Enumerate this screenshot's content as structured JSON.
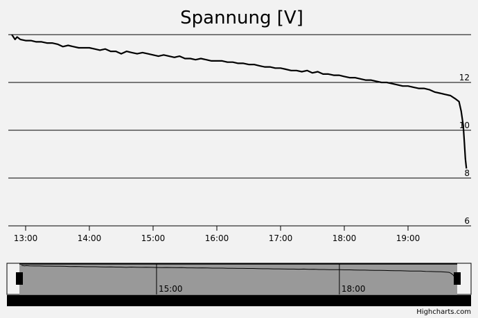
{
  "chart_data": {
    "type": "line",
    "title": "Spannung [V]",
    "xlabel": "",
    "ylabel": "",
    "x_ticks": [
      "13:00",
      "14:00",
      "15:00",
      "16:00",
      "17:00",
      "18:00",
      "19:00"
    ],
    "y_ticks": [
      6,
      8,
      10,
      12
    ],
    "xlim": [
      "12:45",
      "19:56"
    ],
    "ylim": [
      6,
      14
    ],
    "grid": true,
    "series": [
      {
        "x": [
          "12:47",
          "12:50",
          "12:52",
          "12:55",
          "13:00",
          "13:05",
          "13:10",
          "13:15",
          "13:20",
          "13:25",
          "13:30",
          "13:35",
          "13:40",
          "13:45",
          "13:50",
          "13:55",
          "14:00",
          "14:05",
          "14:10",
          "14:15",
          "14:20",
          "14:25",
          "14:30",
          "14:35",
          "14:40",
          "14:45",
          "14:50",
          "14:55",
          "15:00",
          "15:05",
          "15:10",
          "15:15",
          "15:20",
          "15:25",
          "15:30",
          "15:35",
          "15:40",
          "15:45",
          "15:50",
          "15:55",
          "16:00",
          "16:05",
          "16:10",
          "16:15",
          "16:20",
          "16:25",
          "16:30",
          "16:35",
          "16:40",
          "16:45",
          "16:50",
          "16:55",
          "17:00",
          "17:05",
          "17:10",
          "17:15",
          "17:20",
          "17:25",
          "17:30",
          "17:35",
          "17:40",
          "17:45",
          "17:50",
          "17:55",
          "18:00",
          "18:05",
          "18:10",
          "18:15",
          "18:20",
          "18:25",
          "18:30",
          "18:35",
          "18:40",
          "18:45",
          "18:50",
          "18:55",
          "19:00",
          "19:05",
          "19:10",
          "19:15",
          "19:20",
          "19:25",
          "19:30",
          "19:35",
          "19:40",
          "19:45",
          "19:48",
          "19:50",
          "19:52",
          "19:53",
          "19:54",
          "19:55"
        ],
        "y": [
          14.0,
          13.8,
          13.9,
          13.8,
          13.75,
          13.75,
          13.7,
          13.7,
          13.65,
          13.65,
          13.6,
          13.5,
          13.55,
          13.5,
          13.45,
          13.45,
          13.45,
          13.4,
          13.35,
          13.4,
          13.3,
          13.3,
          13.2,
          13.3,
          13.25,
          13.2,
          13.25,
          13.2,
          13.15,
          13.1,
          13.15,
          13.1,
          13.05,
          13.1,
          13.0,
          13.0,
          12.95,
          13.0,
          12.95,
          12.9,
          12.9,
          12.9,
          12.85,
          12.85,
          12.8,
          12.8,
          12.75,
          12.75,
          12.7,
          12.65,
          12.65,
          12.6,
          12.6,
          12.55,
          12.5,
          12.5,
          12.45,
          12.5,
          12.4,
          12.45,
          12.35,
          12.35,
          12.3,
          12.3,
          12.25,
          12.2,
          12.2,
          12.15,
          12.1,
          12.1,
          12.05,
          12.0,
          12.0,
          11.95,
          11.9,
          11.85,
          11.85,
          11.8,
          11.75,
          11.75,
          11.7,
          11.6,
          11.55,
          11.5,
          11.45,
          11.3,
          11.2,
          10.8,
          10.2,
          9.5,
          8.8,
          8.4
        ]
      }
    ],
    "navigator": {
      "x_ticks": [
        "15:00",
        "18:00"
      ]
    }
  },
  "credit": "Highcharts.com"
}
